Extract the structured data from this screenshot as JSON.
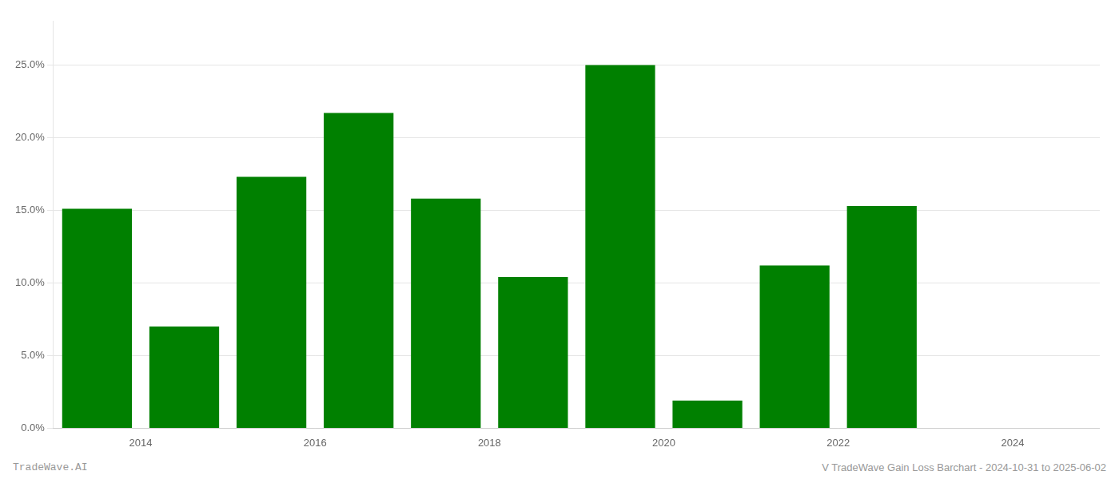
{
  "chart_data": {
    "type": "bar",
    "title": "V TradeWave Gain Loss Barchart - 2024-10-31 to 2025-06-02",
    "annotations": [
      "TradeWave.AI"
    ],
    "x": [
      2013.5,
      2014.5,
      2015.5,
      2016.5,
      2017.5,
      2018.5,
      2019.5,
      2020.5,
      2021.5,
      2022.5
    ],
    "values": [
      0.151,
      0.07,
      0.173,
      0.217,
      0.158,
      0.104,
      0.25,
      0.019,
      0.112,
      0.153
    ],
    "color": "#008000",
    "xlim": [
      2013.0,
      2025.0
    ],
    "xticks": [
      2014,
      2016,
      2018,
      2020,
      2022,
      2024
    ],
    "ylim": [
      0,
      0.28
    ],
    "yticks": [
      {
        "value": 0.0,
        "label": "0.0%"
      },
      {
        "value": 0.05,
        "label": "5.0%"
      },
      {
        "value": 0.1,
        "label": "10.0%"
      },
      {
        "value": 0.15,
        "label": "15.0%"
      },
      {
        "value": 0.2,
        "label": "20.0%"
      },
      {
        "value": 0.25,
        "label": "25.0%"
      }
    ],
    "grid": "y"
  }
}
